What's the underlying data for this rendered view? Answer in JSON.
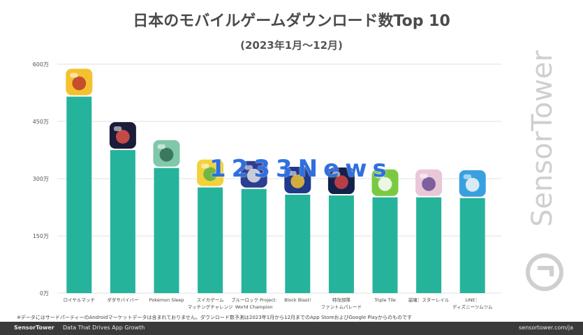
{
  "title": "日本のモバイルゲームダウンロード数Top 10",
  "subtitle": "(2023年1月〜12月)",
  "overlay_text": "1233News",
  "watermark_text": "SensorTower",
  "footnote": "※データにはサードパーティーのAndroidマーケットデータは含まれておりません。ダウンロード数予測は2023年1月から12月までのApp StoreおよびGoogle Playからのものです",
  "footer": {
    "brand": "SensorTower",
    "tagline": "Data That Drives App Growth",
    "url": "sensortower.com/ja"
  },
  "colors": {
    "bar": "#26b39b",
    "grid": "#e2e2e2",
    "footer_bg": "#3a3a3a"
  },
  "chart_data": {
    "type": "bar",
    "title": "日本のモバイルゲームダウンロード数Top 10",
    "subtitle": "(2023年1月〜12月)",
    "ylim": [
      0,
      600
    ],
    "y_ticks": [
      "0万",
      "150万",
      "300万",
      "450万",
      "600万"
    ],
    "y_tick_values": [
      0,
      150,
      300,
      450,
      600
    ],
    "grid": true,
    "categories": [
      [
        "ロイヤルマッチ"
      ],
      [
        "ダダサバイバー"
      ],
      [
        "Pokémon Sleep"
      ],
      [
        "スイカゲーム",
        "マッチングチャレンジ"
      ],
      [
        "ブルーロック Project:",
        "World Champion"
      ],
      [
        "Block Blast!"
      ],
      [
        "特攻部隊",
        "ファントムパレード"
      ],
      [
        "Triple Tile"
      ],
      [
        "崩壊：スターレイル"
      ],
      [
        "LINE：",
        "ディズニーツムツム"
      ]
    ],
    "values": [
      515,
      375,
      328,
      277,
      273,
      258,
      256,
      251,
      251,
      249
    ],
    "icons": [
      "royal-match-icon",
      "dadasurvivor-icon",
      "pokemon-sleep-icon",
      "suika-game-icon",
      "bluelock-icon",
      "block-blast-icon",
      "phantom-parade-icon",
      "triple-tile-icon",
      "star-rail-icon",
      "tsumtsum-icon"
    ],
    "icon_colors": [
      [
        "#f2c230",
        "#c0392b"
      ],
      [
        "#1b1b3a",
        "#e0534a"
      ],
      [
        "#7fc8a9",
        "#2e6b4f"
      ],
      [
        "#f3d13a",
        "#59b346"
      ],
      [
        "#2b3e8f",
        "#e5e5e5"
      ],
      [
        "#1f3a8a",
        "#f2c230"
      ],
      [
        "#12204a",
        "#d34545"
      ],
      [
        "#7ac943",
        "#ffffff"
      ],
      [
        "#e9c7d8",
        "#6a4c93"
      ],
      [
        "#39a0e0",
        "#f7f7f7"
      ]
    ]
  }
}
